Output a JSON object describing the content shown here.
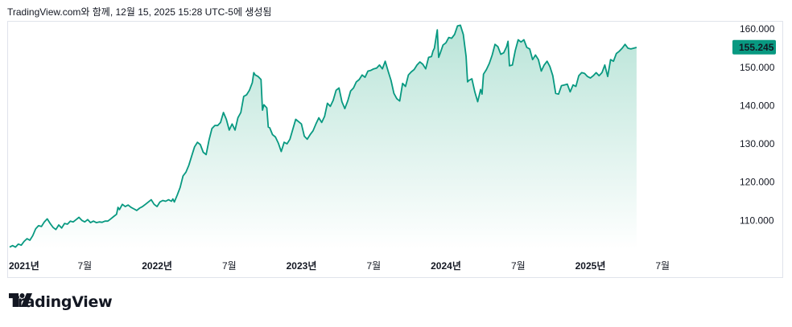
{
  "caption": "TradingView.com와 함께, 12월 15, 2025 15:28 UTC-5에 생성됨",
  "brand": {
    "name": "TradingView",
    "icon": "tradingview-logo-icon"
  },
  "colors": {
    "line": "#089981",
    "area_top": "#b9e4d8",
    "area_bottom": "#ffffff",
    "badge": "#089981",
    "badge_text": "#ffffff"
  },
  "chart_data": {
    "type": "area",
    "x_ticks": [
      {
        "t": 0.0,
        "label": "2021년"
      },
      {
        "t": 0.5,
        "label": "7월"
      },
      {
        "t": 1.0,
        "label": "2022년"
      },
      {
        "t": 1.5,
        "label": "7월"
      },
      {
        "t": 2.0,
        "label": "2023년"
      },
      {
        "t": 2.5,
        "label": "7월"
      },
      {
        "t": 3.0,
        "label": "2024년"
      },
      {
        "t": 3.5,
        "label": "7월"
      },
      {
        "t": 4.0,
        "label": "2025년"
      },
      {
        "t": 4.5,
        "label": "7월"
      }
    ],
    "y_ticks": [
      "110.000",
      "120.000",
      "130.000",
      "140.000",
      "150.000",
      "160.000"
    ],
    "y_values": [
      110,
      120,
      130,
      140,
      150,
      160
    ],
    "ylim": [
      102.5,
      161.5
    ],
    "xlim": [
      -0.02,
      4.95
    ],
    "last_price_label": "155.245",
    "last_price": 155.245,
    "points": [
      [
        -0.02,
        103.0
      ],
      [
        0.0,
        103.4
      ],
      [
        0.02,
        103.0
      ],
      [
        0.04,
        103.8
      ],
      [
        0.06,
        103.5
      ],
      [
        0.08,
        104.5
      ],
      [
        0.1,
        105.2
      ],
      [
        0.12,
        104.8
      ],
      [
        0.14,
        106.0
      ],
      [
        0.16,
        107.8
      ],
      [
        0.18,
        108.6
      ],
      [
        0.2,
        108.4
      ],
      [
        0.22,
        109.6
      ],
      [
        0.24,
        110.4
      ],
      [
        0.26,
        109.2
      ],
      [
        0.28,
        108.2
      ],
      [
        0.3,
        107.6
      ],
      [
        0.32,
        108.8
      ],
      [
        0.34,
        108.0
      ],
      [
        0.36,
        109.2
      ],
      [
        0.38,
        109.0
      ],
      [
        0.4,
        109.8
      ],
      [
        0.42,
        109.6
      ],
      [
        0.44,
        110.2
      ],
      [
        0.46,
        110.8
      ],
      [
        0.48,
        110.0
      ],
      [
        0.5,
        109.6
      ],
      [
        0.52,
        110.2
      ],
      [
        0.54,
        109.4
      ],
      [
        0.56,
        109.8
      ],
      [
        0.58,
        109.4
      ],
      [
        0.6,
        109.6
      ],
      [
        0.62,
        109.5
      ],
      [
        0.64,
        109.8
      ],
      [
        0.66,
        109.8
      ],
      [
        0.68,
        110.4
      ],
      [
        0.7,
        111.0
      ],
      [
        0.72,
        111.6
      ],
      [
        0.73,
        113.4
      ],
      [
        0.74,
        112.8
      ],
      [
        0.76,
        114.2
      ],
      [
        0.78,
        113.6
      ],
      [
        0.8,
        114.0
      ],
      [
        0.82,
        113.4
      ],
      [
        0.84,
        113.0
      ],
      [
        0.86,
        112.6
      ],
      [
        0.88,
        113.2
      ],
      [
        0.9,
        113.6
      ],
      [
        0.92,
        114.2
      ],
      [
        0.94,
        114.8
      ],
      [
        0.96,
        115.4
      ],
      [
        0.98,
        114.2
      ],
      [
        1.0,
        113.6
      ],
      [
        1.02,
        114.8
      ],
      [
        1.04,
        115.2
      ],
      [
        1.06,
        115.0
      ],
      [
        1.08,
        115.4
      ],
      [
        1.1,
        115.0
      ],
      [
        1.11,
        115.6
      ],
      [
        1.12,
        114.8
      ],
      [
        1.14,
        116.6
      ],
      [
        1.16,
        118.6
      ],
      [
        1.18,
        121.6
      ],
      [
        1.2,
        122.6
      ],
      [
        1.22,
        124.4
      ],
      [
        1.24,
        126.8
      ],
      [
        1.26,
        129.2
      ],
      [
        1.28,
        130.4
      ],
      [
        1.3,
        129.8
      ],
      [
        1.32,
        127.8
      ],
      [
        1.34,
        127.2
      ],
      [
        1.36,
        131.0
      ],
      [
        1.38,
        134.0
      ],
      [
        1.4,
        134.8
      ],
      [
        1.42,
        134.8
      ],
      [
        1.44,
        135.6
      ],
      [
        1.46,
        138.2
      ],
      [
        1.48,
        136.4
      ],
      [
        1.5,
        133.6
      ],
      [
        1.52,
        135.2
      ],
      [
        1.54,
        133.6
      ],
      [
        1.56,
        136.8
      ],
      [
        1.58,
        138.2
      ],
      [
        1.6,
        142.4
      ],
      [
        1.62,
        142.8
      ],
      [
        1.64,
        144.0
      ],
      [
        1.66,
        146.0
      ],
      [
        1.67,
        148.6
      ],
      [
        1.68,
        148.0
      ],
      [
        1.7,
        147.6
      ],
      [
        1.72,
        146.8
      ],
      [
        1.73,
        138.8
      ],
      [
        1.74,
        140.2
      ],
      [
        1.76,
        139.4
      ],
      [
        1.77,
        134.4
      ],
      [
        1.78,
        134.2
      ],
      [
        1.8,
        132.4
      ],
      [
        1.82,
        131.8
      ],
      [
        1.84,
        130.2
      ],
      [
        1.86,
        128.0
      ],
      [
        1.88,
        130.4
      ],
      [
        1.9,
        130.0
      ],
      [
        1.92,
        131.2
      ],
      [
        1.94,
        133.8
      ],
      [
        1.96,
        136.4
      ],
      [
        1.98,
        135.8
      ],
      [
        2.0,
        135.2
      ],
      [
        2.02,
        132.0
      ],
      [
        2.04,
        131.2
      ],
      [
        2.06,
        132.4
      ],
      [
        2.08,
        133.4
      ],
      [
        2.1,
        135.2
      ],
      [
        2.12,
        136.8
      ],
      [
        2.14,
        135.6
      ],
      [
        2.16,
        137.2
      ],
      [
        2.18,
        140.6
      ],
      [
        2.2,
        139.8
      ],
      [
        2.22,
        141.4
      ],
      [
        2.24,
        144.0
      ],
      [
        2.26,
        144.6
      ],
      [
        2.28,
        141.0
      ],
      [
        2.3,
        139.2
      ],
      [
        2.32,
        141.2
      ],
      [
        2.34,
        143.8
      ],
      [
        2.36,
        144.6
      ],
      [
        2.38,
        146.2
      ],
      [
        2.4,
        146.8
      ],
      [
        2.42,
        148.0
      ],
      [
        2.44,
        147.4
      ],
      [
        2.46,
        149.0
      ],
      [
        2.48,
        149.2
      ],
      [
        2.5,
        149.6
      ],
      [
        2.52,
        149.8
      ],
      [
        2.54,
        150.6
      ],
      [
        2.56,
        149.6
      ],
      [
        2.58,
        151.6
      ],
      [
        2.6,
        149.0
      ],
      [
        2.62,
        146.6
      ],
      [
        2.64,
        143.2
      ],
      [
        2.66,
        141.8
      ],
      [
        2.68,
        141.2
      ],
      [
        2.7,
        145.8
      ],
      [
        2.72,
        145.0
      ],
      [
        2.74,
        148.0
      ],
      [
        2.76,
        148.8
      ],
      [
        2.78,
        149.4
      ],
      [
        2.8,
        150.6
      ],
      [
        2.82,
        151.4
      ],
      [
        2.84,
        150.8
      ],
      [
        2.86,
        149.6
      ],
      [
        2.88,
        152.6
      ],
      [
        2.9,
        152.8
      ],
      [
        2.91,
        154.2
      ],
      [
        2.92,
        155.0
      ],
      [
        2.94,
        159.8
      ],
      [
        2.95,
        152.6
      ],
      [
        2.96,
        153.6
      ],
      [
        2.98,
        155.8
      ],
      [
        3.0,
        156.4
      ],
      [
        3.02,
        157.8
      ],
      [
        3.04,
        157.6
      ],
      [
        3.06,
        158.6
      ],
      [
        3.08,
        160.8
      ],
      [
        3.1,
        161.0
      ],
      [
        3.12,
        158.6
      ],
      [
        3.14,
        152.8
      ],
      [
        3.15,
        146.2
      ],
      [
        3.16,
        146.6
      ],
      [
        3.18,
        147.0
      ],
      [
        3.2,
        143.6
      ],
      [
        3.22,
        141.0
      ],
      [
        3.24,
        144.2
      ],
      [
        3.25,
        143.0
      ],
      [
        3.26,
        148.2
      ],
      [
        3.28,
        149.4
      ],
      [
        3.3,
        151.0
      ],
      [
        3.32,
        153.2
      ],
      [
        3.34,
        156.0
      ],
      [
        3.36,
        155.4
      ],
      [
        3.38,
        153.4
      ],
      [
        3.4,
        153.8
      ],
      [
        3.42,
        155.4
      ],
      [
        3.43,
        156.8
      ],
      [
        3.44,
        150.4
      ],
      [
        3.46,
        150.6
      ],
      [
        3.48,
        154.4
      ],
      [
        3.5,
        157.2
      ],
      [
        3.52,
        156.6
      ],
      [
        3.54,
        157.2
      ],
      [
        3.56,
        155.2
      ],
      [
        3.58,
        154.8
      ],
      [
        3.6,
        152.0
      ],
      [
        3.62,
        153.2
      ],
      [
        3.64,
        152.0
      ],
      [
        3.66,
        149.0
      ],
      [
        3.68,
        150.6
      ],
      [
        3.7,
        151.6
      ],
      [
        3.72,
        150.2
      ],
      [
        3.74,
        147.8
      ],
      [
        3.76,
        143.2
      ],
      [
        3.78,
        143.0
      ],
      [
        3.8,
        145.2
      ],
      [
        3.82,
        145.4
      ],
      [
        3.84,
        145.6
      ],
      [
        3.86,
        143.6
      ],
      [
        3.88,
        145.4
      ],
      [
        3.9,
        145.0
      ],
      [
        3.92,
        147.8
      ],
      [
        3.94,
        148.6
      ],
      [
        3.96,
        148.4
      ],
      [
        3.98,
        147.6
      ],
      [
        4.0,
        147.2
      ],
      [
        4.02,
        147.8
      ],
      [
        4.04,
        148.6
      ],
      [
        4.06,
        147.8
      ],
      [
        4.08,
        148.6
      ],
      [
        4.1,
        150.6
      ],
      [
        4.12,
        147.6
      ],
      [
        4.14,
        152.0
      ],
      [
        4.16,
        151.6
      ],
      [
        4.18,
        153.6
      ],
      [
        4.2,
        154.2
      ],
      [
        4.22,
        155.0
      ],
      [
        4.24,
        156.0
      ],
      [
        4.26,
        155.0
      ],
      [
        4.28,
        154.8
      ],
      [
        4.3,
        155.0
      ],
      [
        4.32,
        155.2
      ]
    ]
  }
}
